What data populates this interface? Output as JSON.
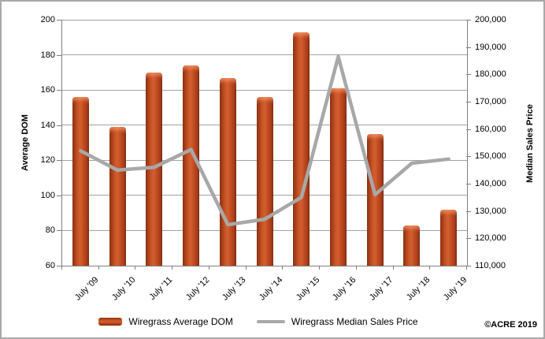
{
  "credit": "©ACRE 2019",
  "chart_data": {
    "type": "combo-bar-line",
    "title": "",
    "categories": [
      "July '09",
      "July '10",
      "July '11",
      "July '12",
      "July '13",
      "July '14",
      "July '15",
      "July '16",
      "July '17",
      "July '18",
      "July '19"
    ],
    "series": [
      {
        "name": "Wiregrass Average DOM",
        "type": "bar",
        "axis": "left",
        "color": "#bf4a24",
        "values": [
          156,
          139,
          170,
          174,
          167,
          156,
          193,
          161,
          135,
          83,
          92
        ]
      },
      {
        "name": "Wiregrass Median Sales Price",
        "type": "line",
        "axis": "right",
        "color": "#a8a8a8",
        "values": [
          152000,
          145000,
          146000,
          152500,
          125000,
          127000,
          135000,
          186500,
          136000,
          147500,
          149000
        ]
      }
    ],
    "left_axis": {
      "title": "Average DOM",
      "min": 60,
      "max": 200,
      "step": 20,
      "tick_labels": [
        "200",
        "180",
        "160",
        "140",
        "120",
        "100",
        "80",
        "60"
      ]
    },
    "right_axis": {
      "title": "Median Sales Price",
      "min": 110000,
      "max": 200000,
      "step": 10000,
      "tick_labels": [
        "200,000",
        "190,000",
        "180,000",
        "170,000",
        "160,000",
        "150,000",
        "140,000",
        "130,000",
        "120,000",
        "110,000"
      ]
    },
    "grid": true,
    "legend_position": "bottom"
  }
}
